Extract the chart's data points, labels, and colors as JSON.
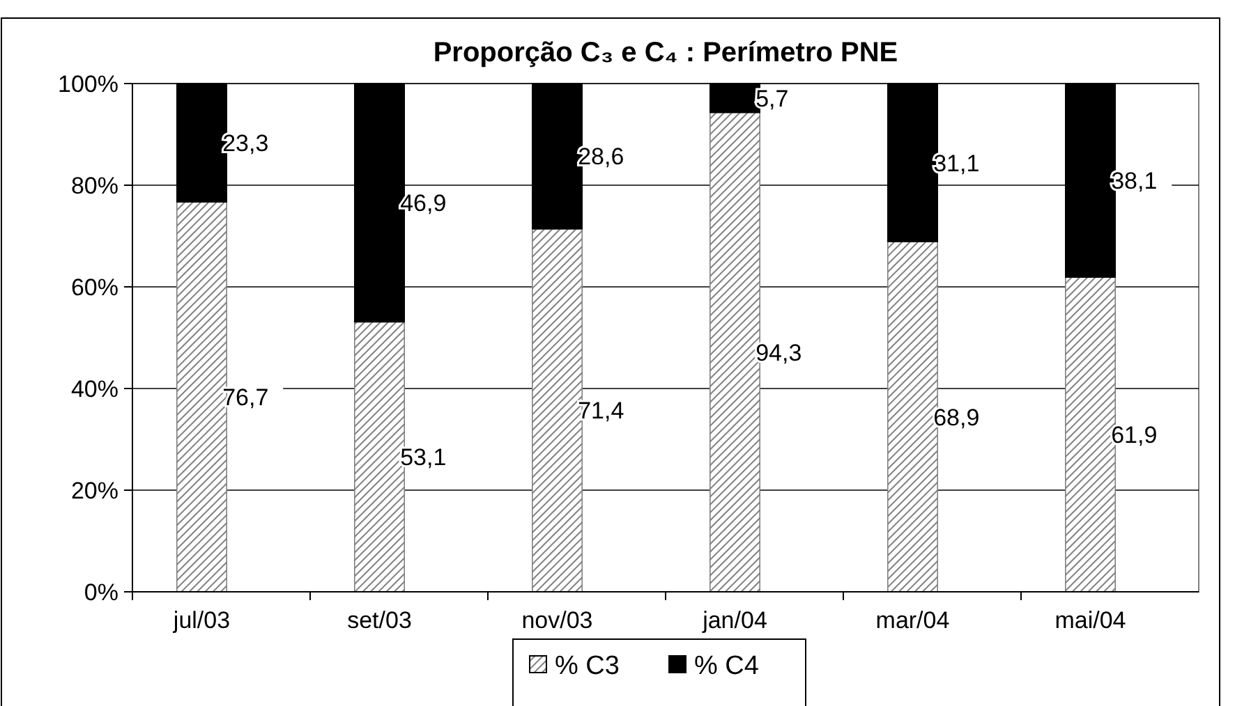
{
  "chart_data": {
    "type": "bar",
    "title": "Proporção C₃ e C₄ : Perímetro PNE",
    "categories": [
      "jul/03",
      "set/03",
      "nov/03",
      "jan/04",
      "mar/04",
      "mai/04"
    ],
    "stacked": true,
    "series": [
      {
        "name": "% C3",
        "color": "#808080",
        "values": [
          76.7,
          53.1,
          71.4,
          94.3,
          68.9,
          61.9
        ],
        "value_labels": [
          "76,7",
          "53,1",
          "71,4",
          "94,3",
          "68,9",
          "61,9"
        ]
      },
      {
        "name": "% C4",
        "color": "#000000",
        "values": [
          23.3,
          46.9,
          28.6,
          5.7,
          31.1,
          38.1
        ],
        "value_labels": [
          "23,3",
          "46,9",
          "28,6",
          "5,7",
          "31,1",
          "38,1"
        ]
      }
    ],
    "ylim": [
      0,
      100
    ],
    "yticks": [
      {
        "value": 0,
        "label": "0%"
      },
      {
        "value": 20,
        "label": "20%"
      },
      {
        "value": 40,
        "label": "40%"
      },
      {
        "value": 60,
        "label": "60%"
      },
      {
        "value": 80,
        "label": "80%"
      },
      {
        "value": 100,
        "label": "100%"
      }
    ],
    "grid": "y",
    "legend": "bottom"
  }
}
